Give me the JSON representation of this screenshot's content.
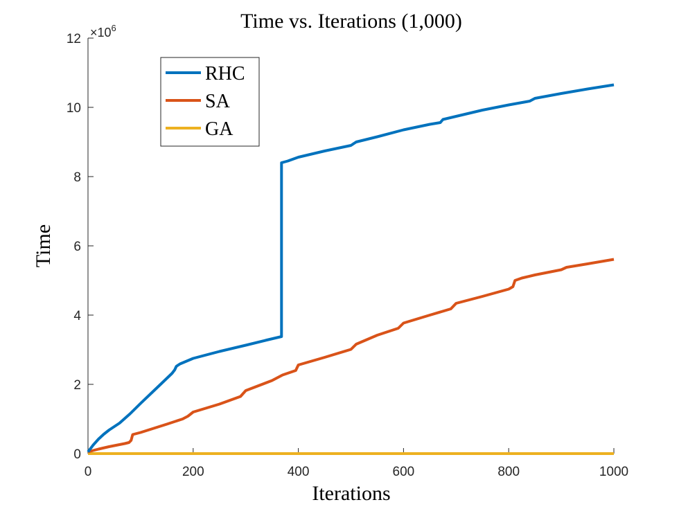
{
  "chart_data": {
    "type": "line",
    "title": "Time vs. Iterations (1,000)",
    "xlabel": "Iterations",
    "ylabel": "Time",
    "xlim": [
      0,
      1000
    ],
    "ylim": [
      0,
      12000000
    ],
    "y_exponent_label": "×10",
    "y_exponent_power": "6",
    "x_ticks": [
      0,
      200,
      400,
      600,
      800,
      1000
    ],
    "x_tick_labels": [
      "0",
      "200",
      "400",
      "600",
      "800",
      "1000"
    ],
    "y_ticks": [
      0,
      2000000,
      4000000,
      6000000,
      8000000,
      10000000,
      12000000
    ],
    "y_tick_labels": [
      "0",
      "2",
      "4",
      "6",
      "8",
      "10",
      "12"
    ],
    "grid": false,
    "legend_position": "top-left",
    "series": [
      {
        "name": "RHC",
        "color": "#0072BD",
        "points": [
          [
            0,
            50000
          ],
          [
            10,
            250000
          ],
          [
            20,
            420000
          ],
          [
            30,
            560000
          ],
          [
            40,
            680000
          ],
          [
            60,
            880000
          ],
          [
            80,
            1150000
          ],
          [
            100,
            1450000
          ],
          [
            120,
            1740000
          ],
          [
            140,
            2030000
          ],
          [
            160,
            2320000
          ],
          [
            165,
            2420000
          ],
          [
            168,
            2520000
          ],
          [
            175,
            2590000
          ],
          [
            200,
            2750000
          ],
          [
            250,
            2950000
          ],
          [
            300,
            3130000
          ],
          [
            340,
            3280000
          ],
          [
            368,
            3380000
          ],
          [
            368,
            8400000
          ],
          [
            380,
            8450000
          ],
          [
            400,
            8560000
          ],
          [
            450,
            8740000
          ],
          [
            500,
            8900000
          ],
          [
            510,
            9000000
          ],
          [
            550,
            9150000
          ],
          [
            600,
            9350000
          ],
          [
            650,
            9510000
          ],
          [
            670,
            9560000
          ],
          [
            675,
            9650000
          ],
          [
            700,
            9740000
          ],
          [
            750,
            9920000
          ],
          [
            800,
            10070000
          ],
          [
            840,
            10180000
          ],
          [
            850,
            10260000
          ],
          [
            900,
            10400000
          ],
          [
            950,
            10530000
          ],
          [
            1000,
            10650000
          ]
        ]
      },
      {
        "name": "SA",
        "color": "#D95319",
        "points": [
          [
            0,
            50000
          ],
          [
            20,
            130000
          ],
          [
            40,
            200000
          ],
          [
            70,
            290000
          ],
          [
            78,
            320000
          ],
          [
            82,
            380000
          ],
          [
            85,
            550000
          ],
          [
            100,
            610000
          ],
          [
            150,
            850000
          ],
          [
            180,
            1000000
          ],
          [
            190,
            1080000
          ],
          [
            200,
            1200000
          ],
          [
            250,
            1430000
          ],
          [
            290,
            1650000
          ],
          [
            300,
            1820000
          ],
          [
            350,
            2110000
          ],
          [
            370,
            2270000
          ],
          [
            395,
            2400000
          ],
          [
            400,
            2560000
          ],
          [
            450,
            2780000
          ],
          [
            500,
            3010000
          ],
          [
            510,
            3160000
          ],
          [
            550,
            3420000
          ],
          [
            590,
            3620000
          ],
          [
            600,
            3770000
          ],
          [
            650,
            4000000
          ],
          [
            690,
            4180000
          ],
          [
            700,
            4340000
          ],
          [
            750,
            4540000
          ],
          [
            800,
            4750000
          ],
          [
            808,
            4820000
          ],
          [
            812,
            5000000
          ],
          [
            825,
            5070000
          ],
          [
            850,
            5160000
          ],
          [
            900,
            5310000
          ],
          [
            910,
            5380000
          ],
          [
            950,
            5480000
          ],
          [
            1000,
            5610000
          ]
        ]
      },
      {
        "name": "GA",
        "color": "#EDB120",
        "points": [
          [
            0,
            0
          ],
          [
            1000,
            0
          ]
        ]
      }
    ]
  }
}
